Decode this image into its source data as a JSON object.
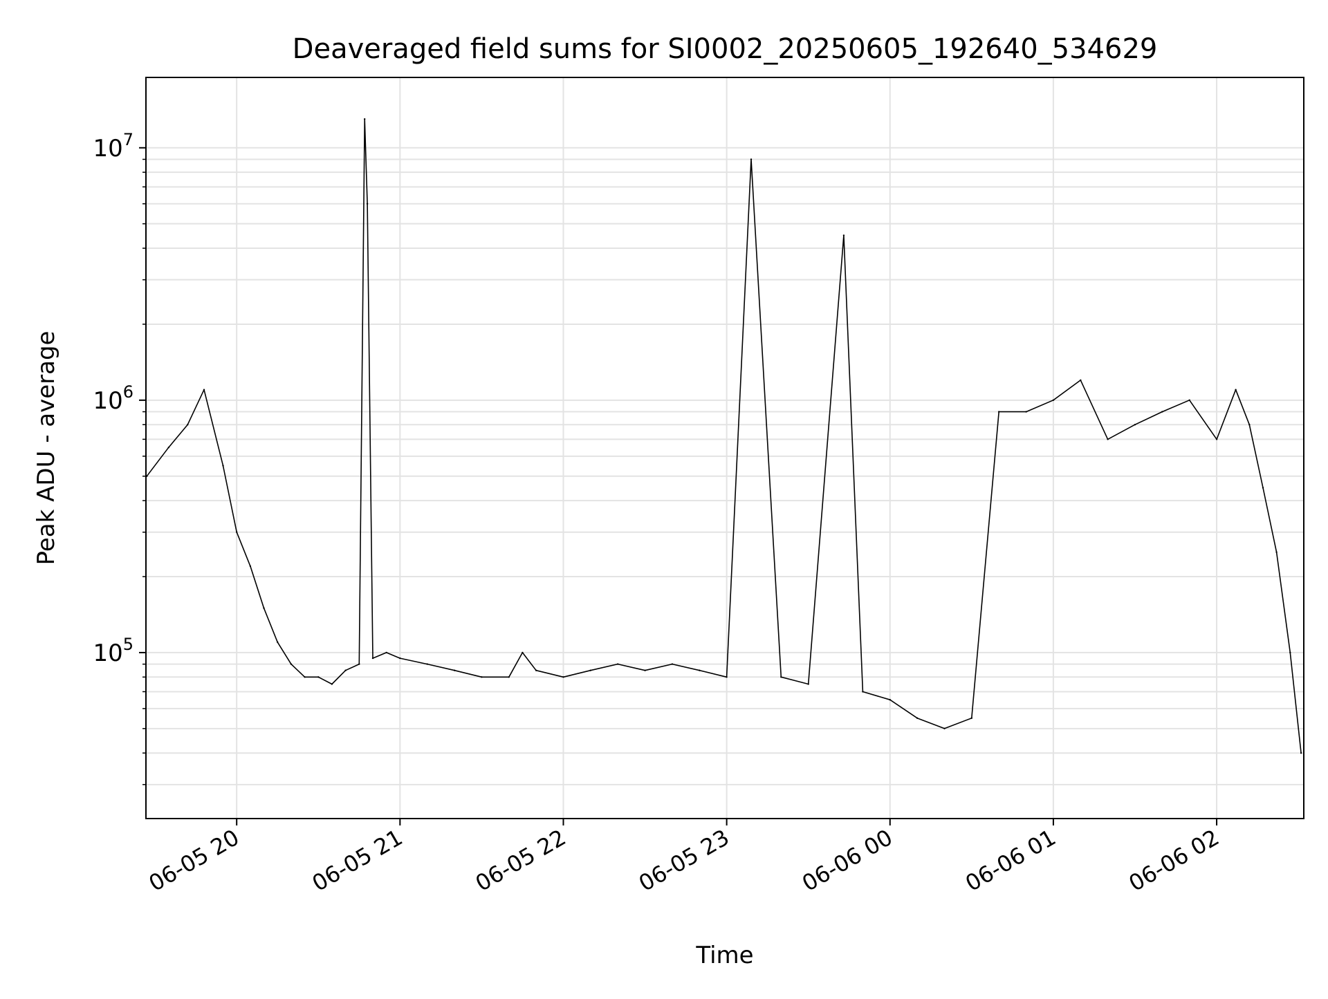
{
  "chart_data": {
    "type": "line",
    "title": "Deaveraged field sums for SI0002_20250605_192640_534629",
    "xlabel": "Time",
    "ylabel": "Peak ADU - average",
    "y_scale": "log",
    "ylim": [
      22000,
      19000000
    ],
    "xlim": [
      "2025-06-05 19:26:40",
      "2025-06-06 02:32:00"
    ],
    "x_ticks": [
      "06-05 20",
      "06-05 21",
      "06-05 22",
      "06-05 23",
      "06-06 00",
      "06-06 01",
      "06-06 02"
    ],
    "x_tick_values": [
      "2025-06-05 20:00",
      "2025-06-05 21:00",
      "2025-06-05 22:00",
      "2025-06-05 23:00",
      "2025-06-06 00:00",
      "2025-06-06 01:00",
      "2025-06-06 02:00"
    ],
    "y_ticks": [
      "10^5",
      "10^6",
      "10^7"
    ],
    "y_tick_values": [
      100000,
      1000000,
      10000000
    ],
    "grid": true,
    "line_color": "#000000",
    "series": [
      {
        "x": [
          "2025-06-05 19:27",
          "2025-06-05 19:35",
          "2025-06-05 19:42",
          "2025-06-05 19:48",
          "2025-06-05 19:55",
          "2025-06-05 20:00",
          "2025-06-05 20:05",
          "2025-06-05 20:10",
          "2025-06-05 20:15",
          "2025-06-05 20:20",
          "2025-06-05 20:25",
          "2025-06-05 20:30",
          "2025-06-05 20:35",
          "2025-06-05 20:40",
          "2025-06-05 20:45",
          "2025-06-05 20:47",
          "2025-06-05 20:48",
          "2025-06-05 20:50",
          "2025-06-05 20:55",
          "2025-06-05 21:00",
          "2025-06-05 21:10",
          "2025-06-05 21:20",
          "2025-06-05 21:30",
          "2025-06-05 21:40",
          "2025-06-05 21:45",
          "2025-06-05 21:50",
          "2025-06-05 22:00",
          "2025-06-05 22:10",
          "2025-06-05 22:20",
          "2025-06-05 22:30",
          "2025-06-05 22:40",
          "2025-06-05 22:50",
          "2025-06-05 23:00",
          "2025-06-05 23:09",
          "2025-06-05 23:20",
          "2025-06-05 23:30",
          "2025-06-05 23:43",
          "2025-06-05 23:50",
          "2025-06-06 00:00",
          "2025-06-06 00:10",
          "2025-06-06 00:20",
          "2025-06-06 00:30",
          "2025-06-06 00:40",
          "2025-06-06 00:50",
          "2025-06-06 01:00",
          "2025-06-06 01:10",
          "2025-06-06 01:20",
          "2025-06-06 01:30",
          "2025-06-06 01:40",
          "2025-06-06 01:50",
          "2025-06-06 02:00",
          "2025-06-06 02:07",
          "2025-06-06 02:12",
          "2025-06-06 02:17",
          "2025-06-06 02:22",
          "2025-06-06 02:27",
          "2025-06-06 02:31"
        ],
        "y": [
          500000,
          650000,
          800000,
          1100000,
          550000,
          300000,
          220000,
          150000,
          110000,
          90000,
          80000,
          80000,
          75000,
          85000,
          90000,
          13000000,
          6000000,
          95000,
          100000,
          95000,
          90000,
          85000,
          80000,
          80000,
          100000,
          85000,
          80000,
          85000,
          90000,
          85000,
          90000,
          85000,
          80000,
          9000000,
          80000,
          75000,
          4500000,
          70000,
          65000,
          55000,
          50000,
          55000,
          900000,
          900000,
          1000000,
          1200000,
          700000,
          800000,
          900000,
          1000000,
          700000,
          1100000,
          800000,
          450000,
          250000,
          100000,
          40000
        ]
      }
    ]
  }
}
